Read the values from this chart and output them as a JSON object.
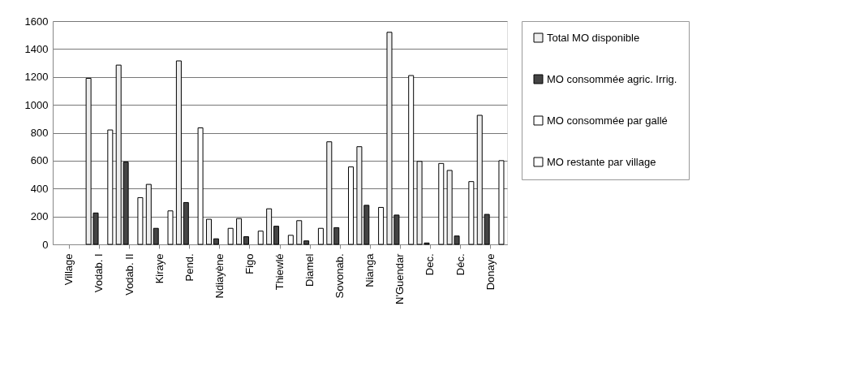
{
  "chart_data": {
    "type": "bar",
    "categories": [
      "Village",
      "Vodab. I",
      "Vodab. II",
      "Kiraye",
      "Pend.",
      "Ndiayène",
      "Figo",
      "Thiewlé",
      "Diamel",
      "Sovonab.",
      "Nianga",
      "N'Guendar",
      "Dec.",
      "Déc.",
      "Donaye"
    ],
    "series": [
      {
        "name": "Total MO disponible",
        "color": "#eeeeee",
        "values": [
          null,
          1190,
          1285,
          430,
          1315,
          180,
          185,
          255,
          170,
          735,
          700,
          1520,
          595,
          530,
          925
        ]
      },
      {
        "name": "MO consommée agric. Irrig.",
        "color": "#444444",
        "values": [
          null,
          225,
          590,
          115,
          300,
          40,
          55,
          130,
          25,
          120,
          280,
          210,
          10,
          60,
          215
        ]
      },
      {
        "name": "MO consommée par gallé",
        "color": "#ffffff",
        "values": [
          null,
          null,
          null,
          null,
          null,
          null,
          null,
          null,
          null,
          null,
          null,
          null,
          null,
          null,
          null
        ]
      },
      {
        "name": "MO restante par village",
        "color": "#ffffff",
        "values": [
          null,
          820,
          335,
          240,
          835,
          115,
          95,
          65,
          115,
          555,
          265,
          1210,
          580,
          450,
          600
        ]
      }
    ],
    "ylim": [
      0,
      1600
    ],
    "yticks": [
      0,
      200,
      400,
      600,
      800,
      1000,
      1200,
      1400,
      1600
    ],
    "grid": "y",
    "legend": "right"
  }
}
